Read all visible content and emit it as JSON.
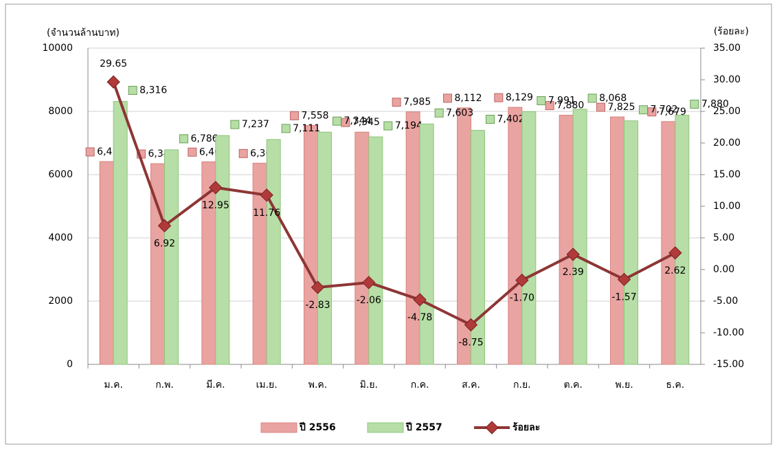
{
  "chart_data": {
    "type": "bar-line",
    "ylabel": "(จำนวนล้านบาท)",
    "y2label": "(ร้อยละ)",
    "categories": [
      "ม.ค.",
      "ก.พ.",
      "มี.ค.",
      "เม.ย.",
      "พ.ค.",
      "มิ.ย.",
      "ก.ค.",
      "ส.ค.",
      "ก.ย.",
      "ต.ค.",
      "พ.ย.",
      "ธ.ค."
    ],
    "series": [
      {
        "name": "ปี 2556",
        "type": "bar",
        "color": "#e9a3a0",
        "values": [
          6414,
          6347,
          6407,
          6363,
          7558,
          7345,
          7985,
          8112,
          8129,
          7880,
          7825,
          7679
        ],
        "value_labels": [
          "6,414",
          "6,347",
          "6,407",
          "6,363",
          "7,558",
          "7,345",
          "7,985",
          "8,112",
          "8,129",
          "7,880",
          "7,825",
          "7,679"
        ]
      },
      {
        "name": "ปี 2557",
        "type": "bar",
        "color": "#b6dea6",
        "values": [
          8316,
          6786,
          7237,
          7111,
          7344,
          7194,
          7603,
          7402,
          7991,
          8068,
          7702,
          7880
        ],
        "value_labels": [
          "8,316",
          "6,786",
          "7,237",
          "7,111",
          "7,344",
          "7,194",
          "7,603",
          "7,402",
          "7,991",
          "8,068",
          "7,702",
          "7,880"
        ]
      },
      {
        "name": "ร้อยละ",
        "type": "line",
        "axis": "y2",
        "color": "#8e3535",
        "values": [
          29.65,
          6.92,
          12.95,
          11.76,
          -2.83,
          -2.06,
          -4.78,
          -8.75,
          -1.7,
          2.39,
          -1.57,
          2.62
        ],
        "value_labels": [
          "29.65",
          "6.92",
          "12.95",
          "11.76",
          "-2.83",
          "-2.06",
          "-4.78",
          "-8.75",
          "-1.70",
          "2.39",
          "-1.57",
          "2.62"
        ]
      }
    ],
    "ylim": [
      0,
      10000
    ],
    "yticks": [
      0,
      2000,
      4000,
      6000,
      8000,
      10000
    ],
    "y2lim": [
      -15,
      35
    ],
    "y2ticks": [
      {
        "value": -15,
        "label": "-15.00"
      },
      {
        "value": -10,
        "label": "-10.00"
      },
      {
        "value": -5,
        "label": "-5.00"
      },
      {
        "value": 0,
        "label": "0.00"
      },
      {
        "value": 5,
        "label": "5.00"
      },
      {
        "value": 10,
        "label": "10.00"
      },
      {
        "value": 15,
        "label": "15.00"
      },
      {
        "value": 20,
        "label": "20.00"
      },
      {
        "value": 25,
        "label": "25.00"
      },
      {
        "value": 30,
        "label": "30.00"
      },
      {
        "value": 35,
        "label": "35.00"
      }
    ],
    "grid": true,
    "legend": "bottom"
  }
}
